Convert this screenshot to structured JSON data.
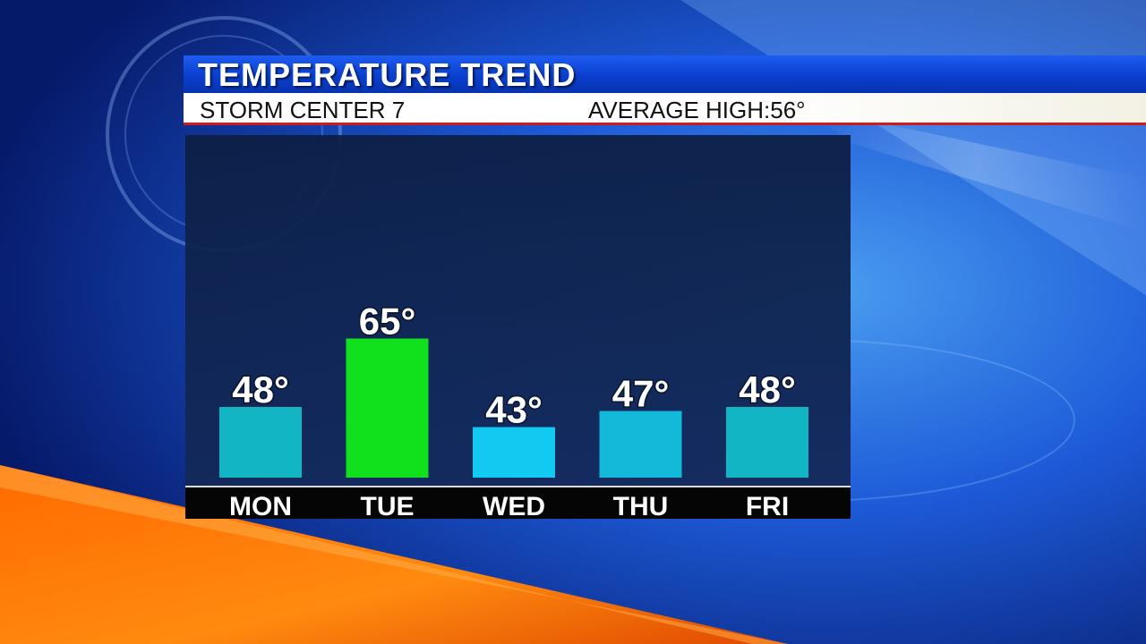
{
  "header": {
    "title": "TEMPERATURE TREND",
    "station": "STORM CENTER 7",
    "average_label": "AVERAGE HIGH:",
    "average_value": "56°"
  },
  "colors": {
    "bar_default": "#12b5c4",
    "bar_highlight": "#11e01c",
    "bar_cool": "#12c9f2"
  },
  "chart_data": {
    "type": "bar",
    "title": "TEMPERATURE TREND",
    "categories": [
      "MON",
      "TUE",
      "WED",
      "THU",
      "FRI"
    ],
    "values": [
      48,
      65,
      43,
      47,
      48
    ],
    "data_labels": [
      "48°",
      "65°",
      "43°",
      "47°",
      "48°"
    ],
    "bar_colors": [
      "#12b5c4",
      "#11e01c",
      "#12c9f2",
      "#12b9d8",
      "#12b5c4"
    ],
    "unit": "°",
    "xlabel": "",
    "ylabel": "",
    "grid": false
  }
}
